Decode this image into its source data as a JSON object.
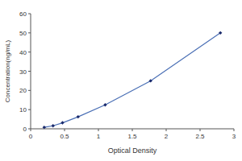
{
  "chart_data": {
    "type": "line",
    "x": [
      0.2,
      0.33,
      0.47,
      0.7,
      1.1,
      1.77,
      2.8
    ],
    "values": [
      0.78,
      1.56,
      3.12,
      6.25,
      12.5,
      25,
      50
    ],
    "color": "#4a6fb5",
    "marker": "diamond",
    "line_style": "solid",
    "x_label": "Optical Density",
    "y_label": "Concentration(ng/mL)",
    "xlim": [
      0,
      3
    ],
    "xticks": [
      0,
      0.5,
      1,
      1.5,
      2,
      2.5,
      3
    ],
    "ylim": [
      0,
      60
    ],
    "yticks": [
      0,
      10,
      20,
      30,
      40,
      50,
      60
    ],
    "grid": false
  }
}
